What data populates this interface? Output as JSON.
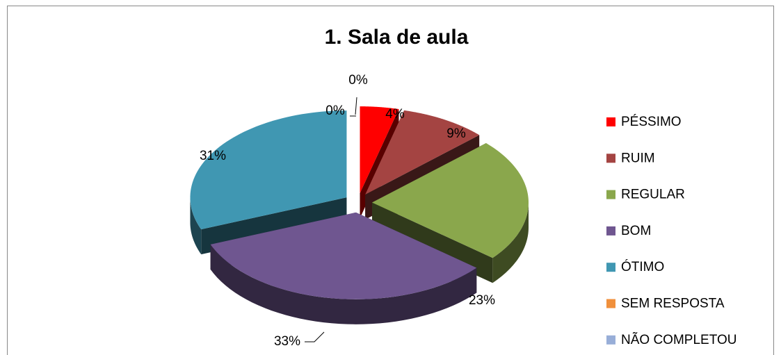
{
  "chart_data": {
    "type": "pie3d",
    "title": "1. Sala de aula",
    "categories": [
      "PÉSSIMO",
      "RUIM",
      "REGULAR",
      "BOM",
      "ÓTIMO",
      "SEM RESPOSTA",
      "NÃO COMPLETOU"
    ],
    "values": [
      4,
      9,
      23,
      33,
      31,
      0,
      0
    ],
    "value_labels": [
      "4%",
      "9%",
      "23%",
      "33%",
      "31%",
      "0%",
      "0%"
    ],
    "colors": [
      "#ff0000",
      "#a44442",
      "#8aa74c",
      "#6f5690",
      "#4097b2",
      "#f0903c",
      "#98aed8"
    ],
    "legend": "right"
  }
}
